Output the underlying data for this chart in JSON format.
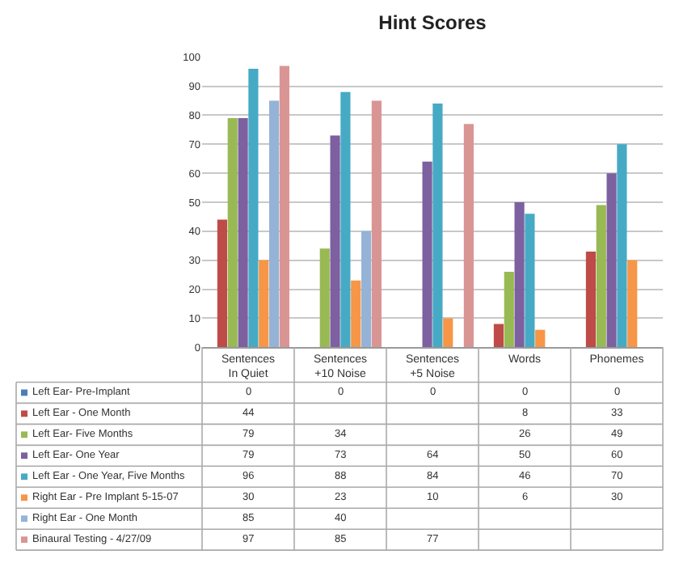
{
  "chart_data": {
    "type": "bar",
    "title": "Hint Scores",
    "categories": [
      "Sentences In Quiet",
      "Sentences +10 Noise",
      "Sentences +5 Noise",
      "Words",
      "Phonemes"
    ],
    "series": [
      {
        "name": "Left Ear- Pre-Implant",
        "color": "#4a7ebb",
        "values": [
          0,
          0,
          0,
          0,
          0
        ]
      },
      {
        "name": "Left Ear - One Month",
        "color": "#be4b48",
        "values": [
          44,
          null,
          null,
          8,
          33
        ]
      },
      {
        "name": "Left Ear- Five Months",
        "color": "#98b954",
        "values": [
          79,
          34,
          null,
          26,
          49
        ]
      },
      {
        "name": "Left Ear- One Year",
        "color": "#7d60a0",
        "values": [
          79,
          73,
          64,
          50,
          60
        ]
      },
      {
        "name": "Left Ear - One Year, Five Months",
        "color": "#46aac5",
        "values": [
          96,
          88,
          84,
          46,
          70
        ]
      },
      {
        "name": "Right Ear - Pre Implant 5-15-07",
        "color": "#f79646",
        "values": [
          30,
          23,
          10,
          6,
          30
        ]
      },
      {
        "name": "Right Ear - One Month",
        "color": "#95b3d7",
        "values": [
          85,
          40,
          null,
          null,
          null
        ]
      },
      {
        "name": "Binaural Testing - 4/27/09",
        "color": "#d99594",
        "values": [
          97,
          85,
          77,
          null,
          null
        ]
      }
    ],
    "ylim": [
      0,
      100
    ],
    "yticks": [
      0,
      10,
      20,
      30,
      40,
      50,
      60,
      70,
      80,
      90,
      100
    ],
    "grid": "y",
    "legend": "bottom left",
    "data_labels": true
  }
}
